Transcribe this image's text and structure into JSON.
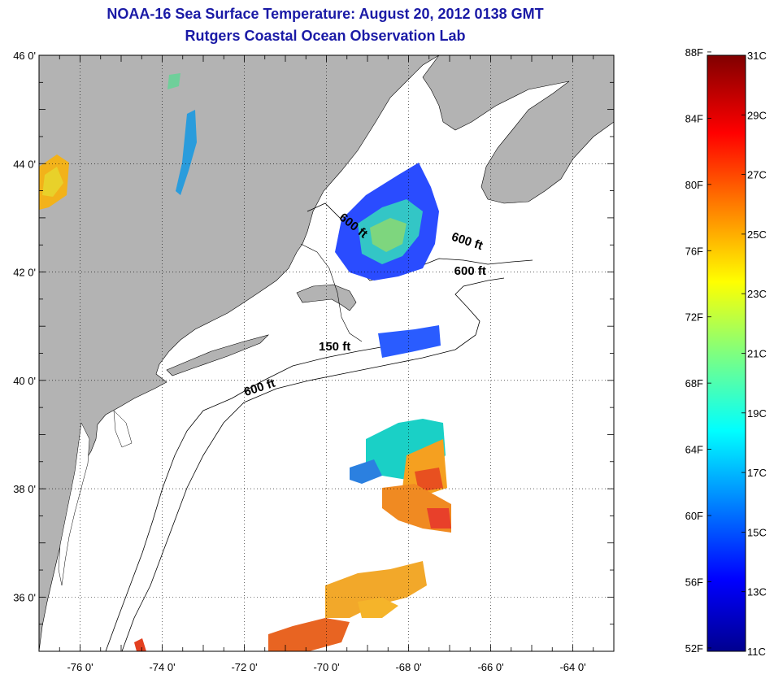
{
  "titles": {
    "line1": "NOAA-16 Sea Surface Temperature:  August 20, 2012 0138 GMT",
    "line2": "Rutgers Coastal Ocean Observation Lab"
  },
  "map": {
    "lon_range": [
      -77,
      -63
    ],
    "lat_range": [
      35,
      46
    ],
    "lon_ticks": [
      "-76 0'",
      "-74 0'",
      "-72 0'",
      "-70 0'",
      "-68 0'",
      "-66 0'",
      "-64 0'"
    ],
    "lat_ticks": [
      "46 0'",
      "44 0'",
      "42 0'",
      "40 0'",
      "38 0'",
      "36 0'"
    ],
    "grid": "dotted",
    "land_color": "#b3b3b3",
    "contour_labels": [
      {
        "text": "600 ft",
        "lon": -69.4,
        "lat": 42.8,
        "rotate": 38
      },
      {
        "text": "600 ft",
        "lon": -66.6,
        "lat": 42.5,
        "rotate": 18
      },
      {
        "text": "600 ft",
        "lon": -66.5,
        "lat": 41.95,
        "rotate": 0
      },
      {
        "text": "150 ft",
        "lon": -69.8,
        "lat": 40.55,
        "rotate": 0
      },
      {
        "text": "600 ft",
        "lon": -71.6,
        "lat": 39.8,
        "rotate": -18
      }
    ]
  },
  "colorbar": {
    "f_labels": [
      "88F",
      "84F",
      "80F",
      "76F",
      "72F",
      "68F",
      "64F",
      "60F",
      "56F",
      "52F"
    ],
    "c_labels": [
      "31C",
      "29C",
      "27C",
      "25C",
      "23C",
      "21C",
      "19C",
      "17C",
      "15C",
      "13C",
      "11C"
    ],
    "range_c": [
      11,
      31
    ],
    "colormap": "jet"
  }
}
